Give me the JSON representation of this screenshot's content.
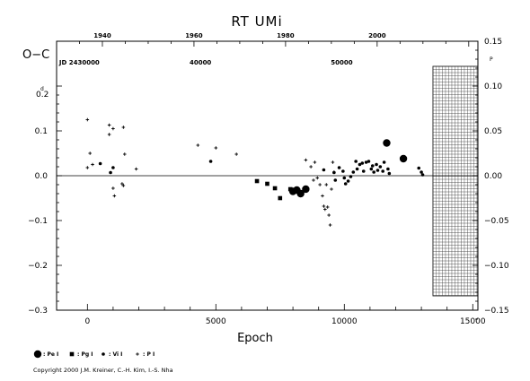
{
  "chart_data": {
    "type": "scatter",
    "title": "RT  UMi",
    "xlabel": "Epoch",
    "ylabel": "O−C",
    "xlim": [
      -1200,
      15200
    ],
    "ylim": [
      -0.3,
      0.3
    ],
    "xticks": [
      0,
      5000,
      10000,
      15000
    ],
    "xtick_labels": [
      "0",
      "5000",
      "10000",
      "15000"
    ],
    "yticks": [
      0.1,
      0.0,
      -0.1,
      -0.2,
      -0.3
    ],
    "ytick_labels": [
      "0.1",
      "0.0",
      "−0.1",
      "−0.2",
      "−0.3"
    ],
    "y_top_label": "0.2",
    "y_top_label_sup": "d",
    "right_axis": {
      "unit_sup": "P",
      "values": [
        0.15,
        0.1,
        0.05,
        0.0,
        -0.05,
        -0.1,
        -0.15
      ],
      "labels": [
        "0.15",
        "0.10",
        "0.05",
        "0.00",
        "−0.05",
        "−0.10",
        "−0.15"
      ]
    },
    "top_axis_years": {
      "values": [
        1940,
        1960,
        1980,
        2000
      ],
      "labels": [
        "1940",
        "1960",
        "1980",
        "2000"
      ]
    },
    "top_axis_jd": {
      "values": [
        30000,
        40000,
        50000
      ],
      "labels": [
        "JD 2430000",
        "40000",
        "50000"
      ]
    },
    "hatched_region_from_epoch": 13450,
    "grid": false,
    "zero_line": true,
    "legend": [
      {
        "symbol": "Pe",
        "label": ": Pe I"
      },
      {
        "symbol": "Pg",
        "label": ": Pg I"
      },
      {
        "symbol": "Vi",
        "label": ": Vi I"
      },
      {
        "symbol": "P",
        "label": ": P I"
      }
    ],
    "series": [
      {
        "symbol": "Pe",
        "points": [
          {
            "x": 8000,
            "y": -0.035
          },
          {
            "x": 8150,
            "y": -0.032
          },
          {
            "x": 8300,
            "y": -0.04
          },
          {
            "x": 8500,
            "y": -0.03
          },
          {
            "x": 12300,
            "y": 0.038
          },
          {
            "x": 11650,
            "y": 0.073
          }
        ]
      },
      {
        "symbol": "Pg",
        "points": [
          {
            "x": 6600,
            "y": -0.012
          },
          {
            "x": 7000,
            "y": -0.018
          },
          {
            "x": 7300,
            "y": -0.028
          },
          {
            "x": 7500,
            "y": -0.05
          },
          {
            "x": 7900,
            "y": -0.03
          }
        ]
      },
      {
        "symbol": "Vi",
        "points": [
          {
            "x": 500,
            "y": 0.027
          },
          {
            "x": 900,
            "y": 0.007
          },
          {
            "x": 1000,
            "y": 0.018
          },
          {
            "x": 4800,
            "y": 0.032
          },
          {
            "x": 9200,
            "y": 0.013
          },
          {
            "x": 9600,
            "y": 0.007
          },
          {
            "x": 9650,
            "y": -0.01
          },
          {
            "x": 9800,
            "y": 0.018
          },
          {
            "x": 9950,
            "y": 0.01
          },
          {
            "x": 10000,
            "y": -0.005
          },
          {
            "x": 10050,
            "y": -0.018
          },
          {
            "x": 10150,
            "y": -0.012
          },
          {
            "x": 10250,
            "y": -0.002
          },
          {
            "x": 10350,
            "y": 0.008
          },
          {
            "x": 10450,
            "y": 0.032
          },
          {
            "x": 10500,
            "y": 0.015
          },
          {
            "x": 10600,
            "y": 0.025
          },
          {
            "x": 10700,
            "y": 0.028
          },
          {
            "x": 10750,
            "y": 0.01
          },
          {
            "x": 10850,
            "y": 0.03
          },
          {
            "x": 10950,
            "y": 0.032
          },
          {
            "x": 11050,
            "y": 0.015
          },
          {
            "x": 11100,
            "y": 0.022
          },
          {
            "x": 11150,
            "y": 0.008
          },
          {
            "x": 11250,
            "y": 0.025
          },
          {
            "x": 11300,
            "y": 0.012
          },
          {
            "x": 11400,
            "y": 0.02
          },
          {
            "x": 11500,
            "y": 0.01
          },
          {
            "x": 11550,
            "y": 0.03
          },
          {
            "x": 11700,
            "y": 0.015
          },
          {
            "x": 11750,
            "y": 0.005
          },
          {
            "x": 12900,
            "y": 0.017
          },
          {
            "x": 13000,
            "y": 0.008
          },
          {
            "x": 13050,
            "y": 0.002
          }
        ]
      },
      {
        "symbol": "P",
        "points": [
          {
            "x": 0,
            "y": 0.125
          },
          {
            "x": 0,
            "y": 0.018
          },
          {
            "x": 100,
            "y": 0.05
          },
          {
            "x": 200,
            "y": 0.025
          },
          {
            "x": 850,
            "y": 0.113
          },
          {
            "x": 850,
            "y": 0.092
          },
          {
            "x": 1000,
            "y": 0.105
          },
          {
            "x": 1000,
            "y": -0.028
          },
          {
            "x": 1050,
            "y": -0.045
          },
          {
            "x": 1350,
            "y": -0.018
          },
          {
            "x": 1400,
            "y": -0.022
          },
          {
            "x": 1400,
            "y": 0.108
          },
          {
            "x": 1450,
            "y": 0.048
          },
          {
            "x": 1900,
            "y": 0.015
          },
          {
            "x": 4300,
            "y": 0.068
          },
          {
            "x": 5000,
            "y": 0.062
          },
          {
            "x": 5800,
            "y": 0.048
          },
          {
            "x": 8500,
            "y": 0.035
          },
          {
            "x": 8700,
            "y": 0.02
          },
          {
            "x": 8800,
            "y": -0.01
          },
          {
            "x": 8850,
            "y": 0.03
          },
          {
            "x": 8950,
            "y": -0.005
          },
          {
            "x": 9050,
            "y": -0.02
          },
          {
            "x": 9150,
            "y": -0.045
          },
          {
            "x": 9200,
            "y": -0.068
          },
          {
            "x": 9250,
            "y": -0.075
          },
          {
            "x": 9300,
            "y": -0.02
          },
          {
            "x": 9400,
            "y": -0.088
          },
          {
            "x": 9450,
            "y": -0.11
          },
          {
            "x": 9500,
            "y": -0.03
          },
          {
            "x": 9550,
            "y": 0.03
          },
          {
            "x": 9350,
            "y": -0.07
          },
          {
            "x": 9600,
            "y": 0.008
          }
        ]
      }
    ]
  },
  "copyright": "Copyright 2000 J.M. Kreiner, C.-H. Kim, I.-S. Nha"
}
